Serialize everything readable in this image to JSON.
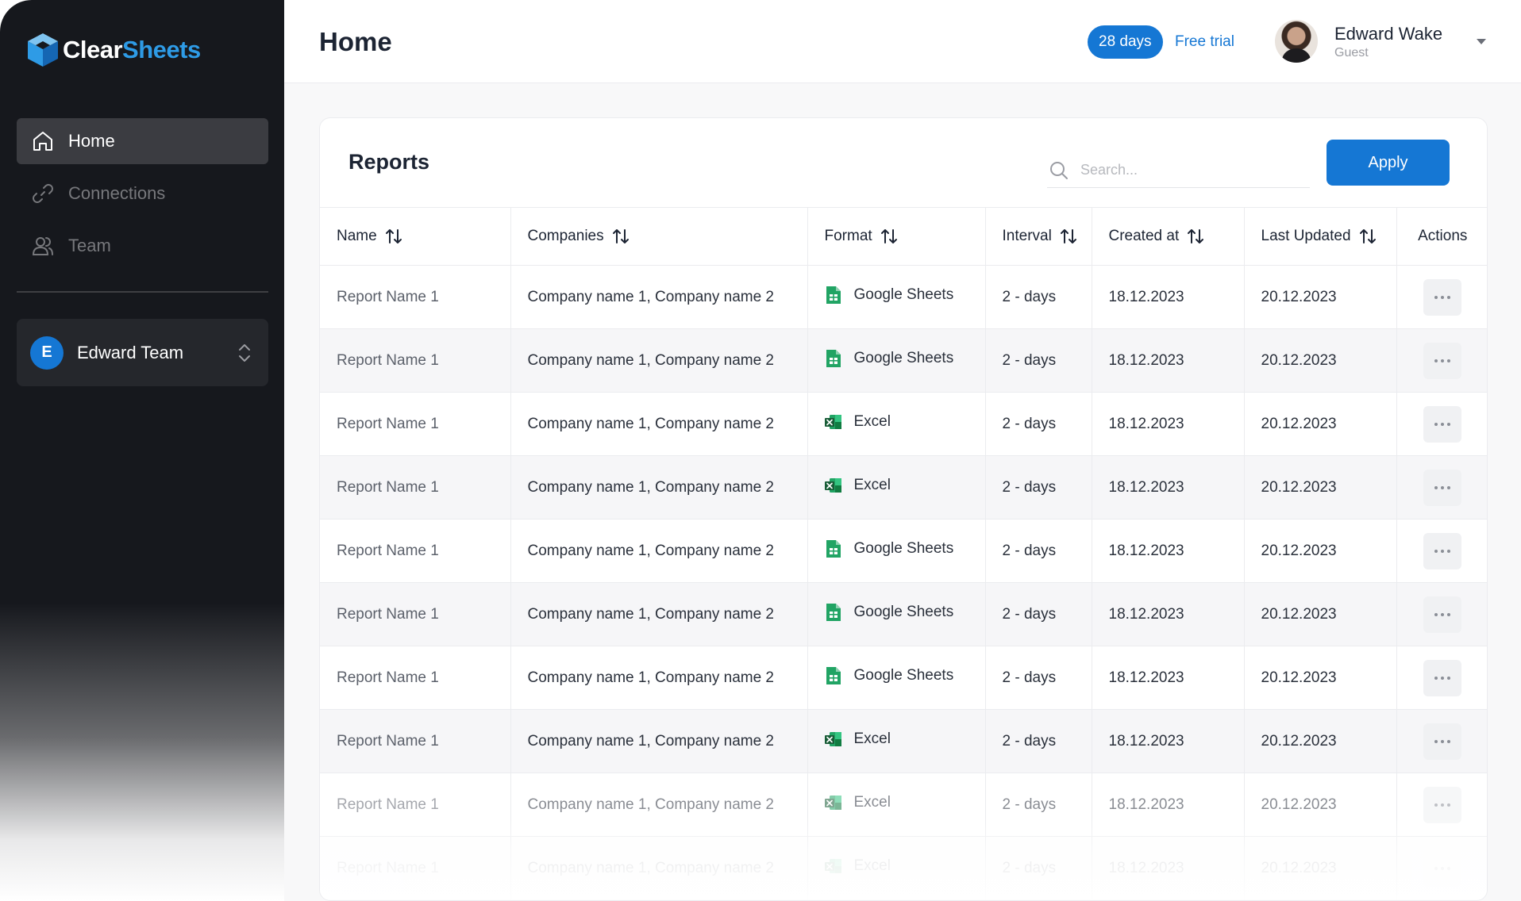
{
  "app": {
    "logo_part1": "Clear",
    "logo_part2": "Sheets",
    "accent": "#1577d4"
  },
  "sidebar": {
    "items": [
      {
        "label": "Home",
        "icon": "home-icon",
        "active": true
      },
      {
        "label": "Connections",
        "icon": "link-icon",
        "active": false
      },
      {
        "label": "Team",
        "icon": "users-icon",
        "active": false
      }
    ],
    "team": {
      "initial": "E",
      "name": "Edward Team"
    }
  },
  "header": {
    "title": "Home",
    "trial_days": "28 days",
    "trial_label": "Free trial",
    "user": {
      "name": "Edward Wake",
      "role": "Guest"
    }
  },
  "reports": {
    "title": "Reports",
    "search_placeholder": "Search...",
    "apply_label": "Apply",
    "columns": [
      "Name",
      "Companies",
      "Format",
      "Interval",
      "Created at",
      "Last Updated",
      "Actions"
    ],
    "rows": [
      {
        "name": "Report Name 1",
        "companies": "Company name 1,  Company name 2",
        "format": "Google Sheets",
        "format_icon": "google-sheets-icon",
        "interval": "2 - days",
        "created": "18.12.2023",
        "updated": "20.12.2023"
      },
      {
        "name": "Report Name 1",
        "companies": "Company name 1,  Company name 2",
        "format": "Google Sheets",
        "format_icon": "google-sheets-icon",
        "interval": "2 - days",
        "created": "18.12.2023",
        "updated": "20.12.2023"
      },
      {
        "name": "Report Name 1",
        "companies": "Company name 1,  Company name 2",
        "format": "Excel",
        "format_icon": "excel-icon",
        "interval": "2 - days",
        "created": "18.12.2023",
        "updated": "20.12.2023"
      },
      {
        "name": "Report Name 1",
        "companies": "Company name 1,  Company name 2",
        "format": "Excel",
        "format_icon": "excel-icon",
        "interval": "2 - days",
        "created": "18.12.2023",
        "updated": "20.12.2023"
      },
      {
        "name": "Report Name 1",
        "companies": "Company name 1,  Company name 2",
        "format": "Google Sheets",
        "format_icon": "google-sheets-icon",
        "interval": "2 - days",
        "created": "18.12.2023",
        "updated": "20.12.2023"
      },
      {
        "name": "Report Name 1",
        "companies": "Company name 1,  Company name 2",
        "format": "Google Sheets",
        "format_icon": "google-sheets-icon",
        "interval": "2 - days",
        "created": "18.12.2023",
        "updated": "20.12.2023"
      },
      {
        "name": "Report Name 1",
        "companies": "Company name 1,  Company name 2",
        "format": "Google Sheets",
        "format_icon": "google-sheets-icon",
        "interval": "2 - days",
        "created": "18.12.2023",
        "updated": "20.12.2023"
      },
      {
        "name": "Report Name 1",
        "companies": "Company name 1,  Company name 2",
        "format": "Excel",
        "format_icon": "excel-icon",
        "interval": "2 - days",
        "created": "18.12.2023",
        "updated": "20.12.2023"
      },
      {
        "name": "Report Name 1",
        "companies": "Company name 1,  Company name 2",
        "format": "Excel",
        "format_icon": "excel-icon",
        "interval": "2 - days",
        "created": "18.12.2023",
        "updated": "20.12.2023"
      },
      {
        "name": "Report Name 1",
        "companies": "Company name 1,  Company name 2",
        "format": "Excel",
        "format_icon": "excel-icon",
        "interval": "2 - days",
        "created": "18.12.2023",
        "updated": "20.12.2023"
      }
    ]
  }
}
